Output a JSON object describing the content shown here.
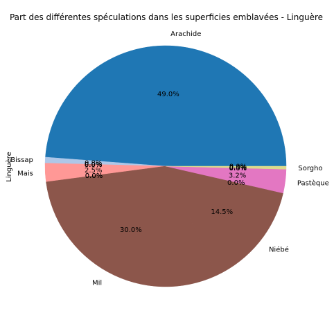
{
  "chart_data": {
    "type": "pie",
    "title": "Part des différentes spéculations dans les superficies emblavées - Linguère",
    "ylabel": "Linguère",
    "slices": [
      {
        "label": "Arachide",
        "value": 49.0,
        "pct_text": "49.0%",
        "color": "#1f77b4"
      },
      {
        "label": "Bissap",
        "value": 0.8,
        "pct_text": "0.8%",
        "color": "#aec7e8"
      },
      {
        "label": "",
        "value": 0.0,
        "pct_text": "0.0%",
        "color": "#ff7f0e"
      },
      {
        "label": "",
        "value": 0.0,
        "pct_text": "0.0%",
        "color": "#ffbb78"
      },
      {
        "label": "",
        "value": 0.0,
        "pct_text": "0.0%",
        "color": "#2ca02c"
      },
      {
        "label": "",
        "value": 0.0,
        "pct_text": "0.0%",
        "color": "#98df8a"
      },
      {
        "label": "Mais",
        "value": 2.5,
        "pct_text": "2.5%",
        "color": "#ff9896"
      },
      {
        "label": "",
        "value": 0.0,
        "pct_text": "0.0%",
        "color": "#9467bd"
      },
      {
        "label": "",
        "value": 0.0,
        "pct_text": "0.0%",
        "color": "#c5b0d5"
      },
      {
        "label": "Mil",
        "value": 30.0,
        "pct_text": "30.0%",
        "color": "#8c564b"
      },
      {
        "label": "Niébé",
        "value": 14.5,
        "pct_text": "14.5%",
        "color": "#8c564b"
      },
      {
        "label": "",
        "value": 0.0,
        "pct_text": "0.0%",
        "color": "#c49c94"
      },
      {
        "label": "Pastèque",
        "value": 3.2,
        "pct_text": "3.2%",
        "color": "#e377c2"
      },
      {
        "label": "",
        "value": 0.0,
        "pct_text": "0.0%",
        "color": "#f7b6d2"
      },
      {
        "label": "",
        "value": 0.0,
        "pct_text": "0.0%",
        "color": "#7f7f7f"
      },
      {
        "label": "",
        "value": 0.0,
        "pct_text": "0.0%",
        "color": "#c7c7c7"
      },
      {
        "label": "Sorgho",
        "value": 0.4,
        "pct_text": "0.4%",
        "color": "#dbdb8d"
      },
      {
        "label": "",
        "value": 0.0,
        "pct_text": "0.0%",
        "color": "#17becf"
      }
    ]
  }
}
